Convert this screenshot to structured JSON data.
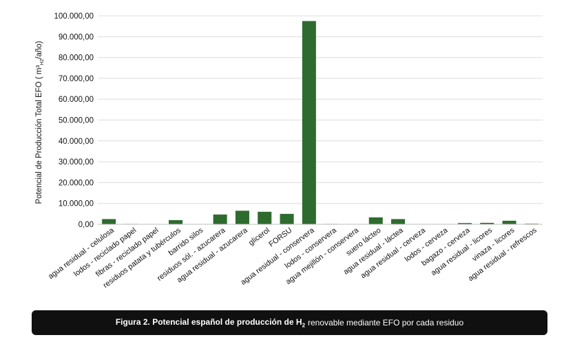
{
  "chart_data": {
    "type": "bar",
    "ylabel": "Potencial de Producción Total EFO ( m³",
    "ylabel_sub": "H2",
    "ylabel_tail": "/año)",
    "ylim": [
      0,
      100000
    ],
    "yticks": [
      "0,00",
      "10.000,00",
      "20.000,00",
      "30.000,00",
      "40.000,00",
      "50.000,00",
      "60.000,00",
      "70.000,00",
      "80.000,00",
      "90.000,00",
      "100.000,00"
    ],
    "ytick_values": [
      0,
      10000,
      20000,
      30000,
      40000,
      50000,
      60000,
      70000,
      80000,
      90000,
      100000
    ],
    "grid": true,
    "bar_color": "#2e6b2e",
    "categories": [
      "agua residual - celulosa",
      "lodos - reciclado papel",
      "fibras - reciclado papel",
      "residuos patata y tubérculos",
      "barrido silos",
      "residuos sól. - azucarera",
      "agua residual - azucarera",
      "glicerol",
      "FORSU",
      "agua residual - conservera",
      "lodos - conservera",
      "agua mejillón - conservera",
      "suero lácteo",
      "agua residual - láctea",
      "agua residual - cerveza",
      "lodos - cerveza",
      "bagazo - cerveza",
      "agua residual - licores",
      "vinaza - licores",
      "agua residual - refrescos"
    ],
    "values": [
      2500,
      200,
      100,
      2000,
      0,
      4700,
      6500,
      6000,
      5000,
      97500,
      200,
      0,
      3300,
      2500,
      0,
      0,
      600,
      700,
      1700,
      300
    ]
  },
  "caption": {
    "bold": "Figura 2. Potencial español de producción de H",
    "bold_sub": "2",
    "rest": "renovable mediante EFO por cada residuo"
  }
}
